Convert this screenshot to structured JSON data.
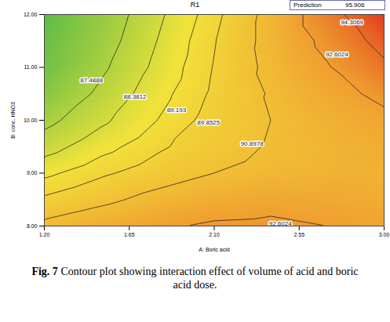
{
  "chart_data": {
    "type": "contour",
    "title": "R1",
    "prediction": {
      "label": "Prediction",
      "value": 95.906
    },
    "x_label": "A: Boric acid",
    "y_label": "B: conc. HNO3",
    "xlim": [
      1.2,
      3
    ],
    "ylim": [
      8,
      12
    ],
    "xticks": [
      {
        "value": 1.2,
        "label": "1.20"
      },
      {
        "value": 1.65,
        "label": "1.65"
      },
      {
        "value": 2.1,
        "label": "2.10"
      },
      {
        "value": 2.55,
        "label": "2.55"
      },
      {
        "value": 3,
        "label": "3.00"
      }
    ],
    "yticks": [
      {
        "value": 8,
        "label": "8.00"
      },
      {
        "value": 9,
        "label": "9.00"
      },
      {
        "value": 10,
        "label": "10.00"
      },
      {
        "value": 11,
        "label": "11.00"
      },
      {
        "value": 12,
        "label": "12.00"
      }
    ],
    "x": [
      1.2,
      1.5,
      1.8,
      2.1,
      2.4,
      2.7,
      3.0
    ],
    "y": [
      8,
      8.5,
      9,
      9.5,
      10,
      10.5,
      11,
      11.5,
      12
    ],
    "z": [
      [
        91.2,
        91.8,
        92.4,
        92.8,
        92.9,
        92.6,
        92.2
      ],
      [
        90.0,
        90.6,
        91.3,
        91.8,
        92.1,
        92.0,
        91.8
      ],
      [
        89.0,
        89.7,
        90.3,
        90.9,
        91.3,
        91.5,
        91.6
      ],
      [
        88.0,
        88.9,
        89.7,
        90.4,
        91.0,
        91.4,
        91.8
      ],
      [
        87.2,
        88.2,
        89.2,
        90.2,
        90.9,
        91.6,
        92.2
      ],
      [
        86.5,
        87.7,
        88.9,
        90.0,
        91.0,
        92.0,
        93.0
      ],
      [
        86.0,
        87.3,
        88.6,
        89.9,
        91.2,
        92.5,
        94.0
      ],
      [
        85.8,
        87.0,
        88.4,
        89.8,
        91.3,
        93.0,
        94.9
      ],
      [
        85.5,
        86.8,
        88.2,
        89.6,
        91.3,
        93.6,
        96.0
      ]
    ],
    "z_range": [
      85.5,
      96
    ],
    "contour_labels": [
      {
        "value": 87.4888,
        "x": 1.45,
        "y": 10.75
      },
      {
        "value": 88.3812,
        "x": 1.68,
        "y": 10.45
      },
      {
        "value": 89.193,
        "x": 1.9,
        "y": 10.2
      },
      {
        "value": 89.8525,
        "x": 2.07,
        "y": 9.95
      },
      {
        "value": 90.8978,
        "x": 2.3,
        "y": 9.55
      },
      {
        "value": 92.6024,
        "x": 2.75,
        "y": 11.25
      },
      {
        "value": 94.3069,
        "x": 2.83,
        "y": 11.85
      },
      {
        "value": 92.6024,
        "x": 2.45,
        "y": 8.05
      }
    ],
    "caption": "Fig. 7 Contour plot showing interaction effect of volume of acid and boric acid dose."
  }
}
